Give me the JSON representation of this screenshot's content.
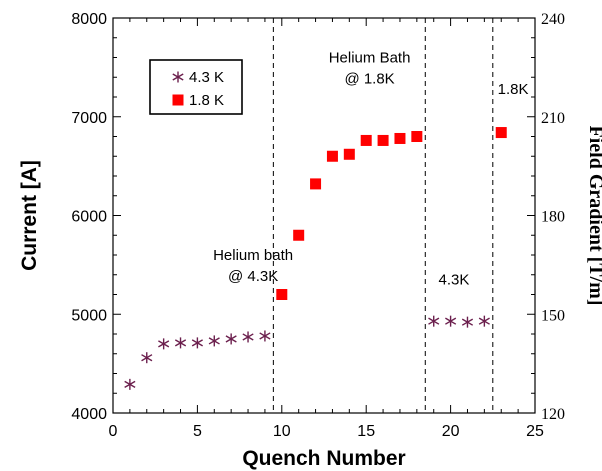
{
  "chart_data": {
    "type": "scatter",
    "xlabel": "Quench Number",
    "ylabel": "Current [A]",
    "y2label": "Field Gradient [T/m]",
    "xlim": [
      0,
      25
    ],
    "ylim": [
      4000,
      8000
    ],
    "y2lim": [
      120,
      240
    ],
    "x_ticks": [
      0,
      5,
      10,
      15,
      20,
      25
    ],
    "y_ticks": [
      4000,
      5000,
      6000,
      7000,
      8000
    ],
    "y2_ticks": [
      120,
      150,
      180,
      210,
      240
    ],
    "series": [
      {
        "name": "4.3 K",
        "marker": "asterisk",
        "color": "#6b1f4d",
        "x": [
          1,
          2,
          3,
          4,
          5,
          6,
          7,
          8,
          9,
          19,
          20,
          21,
          22
        ],
        "y": [
          4290,
          4560,
          4700,
          4710,
          4710,
          4730,
          4750,
          4770,
          4780,
          4930,
          4930,
          4920,
          4930
        ]
      },
      {
        "name": "1.8 K",
        "marker": "square",
        "color": "#ff0000",
        "x": [
          10,
          11,
          12,
          13,
          14,
          15,
          16,
          17,
          18,
          23
        ],
        "y": [
          5200,
          5800,
          6320,
          6600,
          6620,
          6760,
          6760,
          6780,
          6800,
          6840
        ]
      }
    ],
    "vlines": [
      9.5,
      18.5,
      22.5
    ],
    "annotations": [
      {
        "lines": [
          "Helium bath",
          "@ 4.3K"
        ],
        "x": 8.3,
        "y": 5550
      },
      {
        "lines": [
          "Helium Bath",
          "@ 1.8K"
        ],
        "x": 15.2,
        "y": 7550
      },
      {
        "lines": [
          "4.3K"
        ],
        "x": 20.2,
        "y": 5300
      },
      {
        "lines": [
          "1.8K"
        ],
        "x": 23.7,
        "y": 7230
      }
    ],
    "legend_position": "top-left"
  }
}
